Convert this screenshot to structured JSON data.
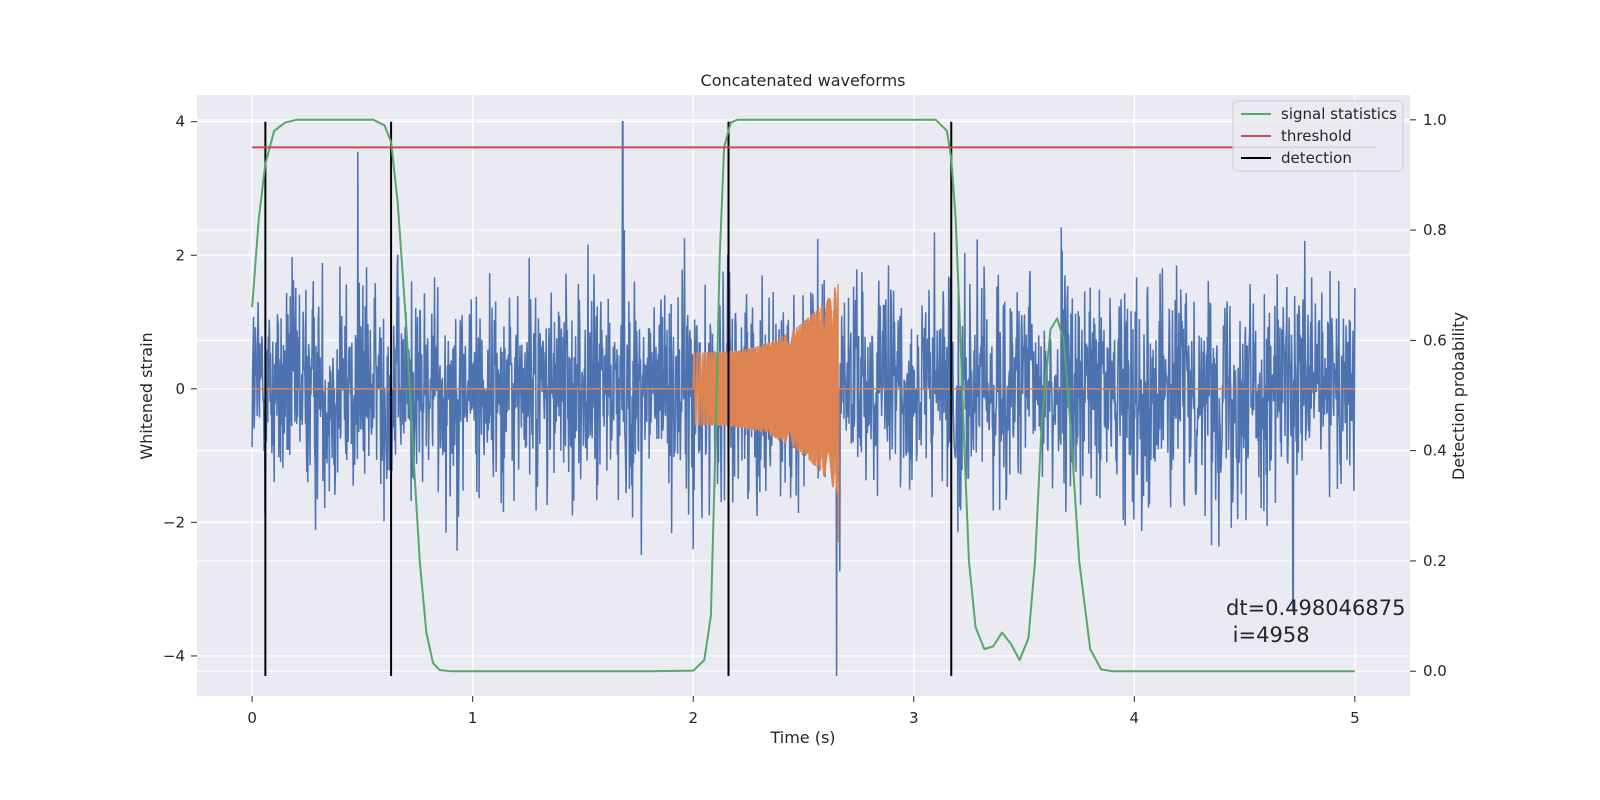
{
  "chart_data": {
    "type": "line",
    "title": "Concatenated waveforms",
    "xlabel": "Time (s)",
    "ylabel": "Whitened strain",
    "y2label": "Detection probability",
    "xlim": [
      -0.25,
      5.25
    ],
    "ylim": [
      -4.6,
      4.4
    ],
    "y2lim": [
      -0.045,
      1.045
    ],
    "xticks": [
      0,
      1,
      2,
      3,
      4,
      5
    ],
    "yticks": [
      -4,
      -2,
      0,
      2,
      4
    ],
    "y2ticks": [
      0.0,
      0.2,
      0.4,
      0.6,
      0.8,
      1.0
    ],
    "grid": true,
    "legend_position": "top-right",
    "colors": {
      "axes_bg": "#EAEAF2",
      "grid": "#FFFFFF",
      "strain": "#4C72B0",
      "template": "#DD8452",
      "signal_statistics": "#55A868",
      "threshold": "#C44E52",
      "detection": "#000000"
    },
    "legend": [
      {
        "label": "signal statistics",
        "color": "#55A868"
      },
      {
        "label": "threshold",
        "color": "#C44E52"
      },
      {
        "label": "detection",
        "color": "#000000"
      }
    ],
    "series": [
      {
        "name": "signal statistics",
        "axis": "right",
        "x": [
          0.0,
          0.03,
          0.06,
          0.1,
          0.15,
          0.2,
          0.3,
          0.45,
          0.55,
          0.6,
          0.63,
          0.66,
          0.7,
          0.73,
          0.76,
          0.79,
          0.82,
          0.85,
          0.9,
          1.2,
          1.5,
          1.8,
          2.0,
          2.05,
          2.08,
          2.1,
          2.12,
          2.14,
          2.17,
          2.2,
          2.3,
          2.5,
          2.8,
          3.1,
          3.15,
          3.17,
          3.19,
          3.21,
          3.23,
          3.25,
          3.28,
          3.32,
          3.36,
          3.4,
          3.44,
          3.48,
          3.52,
          3.55,
          3.58,
          3.62,
          3.65,
          3.68,
          3.71,
          3.75,
          3.8,
          3.85,
          3.9,
          4.0,
          4.5,
          5.0
        ],
        "y": [
          0.66,
          0.82,
          0.92,
          0.98,
          0.995,
          1.0,
          1.0,
          1.0,
          1.0,
          0.99,
          0.96,
          0.85,
          0.62,
          0.4,
          0.2,
          0.07,
          0.015,
          0.002,
          0.0,
          0.0,
          0.0,
          0.0,
          0.001,
          0.02,
          0.1,
          0.4,
          0.75,
          0.95,
          0.995,
          1.0,
          1.0,
          1.0,
          1.0,
          1.0,
          0.98,
          0.93,
          0.82,
          0.62,
          0.4,
          0.2,
          0.08,
          0.04,
          0.045,
          0.07,
          0.05,
          0.02,
          0.06,
          0.2,
          0.45,
          0.62,
          0.64,
          0.6,
          0.45,
          0.2,
          0.04,
          0.003,
          0.0,
          0.0,
          0.0,
          0.0
        ]
      },
      {
        "name": "threshold",
        "axis": "right",
        "x": [
          0.0,
          5.1
        ],
        "y": [
          0.95,
          0.95
        ]
      }
    ],
    "detections": [
      0.06,
      0.63,
      2.16,
      3.17
    ],
    "strain_noise": {
      "x_range": [
        0.0,
        5.0
      ],
      "amplitude": 0.85,
      "peaks": [
        {
          "x": 1.68,
          "y": 4.0
        },
        {
          "x": 0.48,
          "y": 3.55
        },
        {
          "x": 2.65,
          "y": -4.3
        },
        {
          "x": 4.72,
          "y": -3.3
        },
        {
          "x": 2.0,
          "y": -2.4
        }
      ]
    },
    "template_chirp": {
      "x_start": 2.0,
      "x_end": 2.66,
      "amp_start": 0.55,
      "amp_end": 1.6,
      "min_end": -2.3
    },
    "annotation": {
      "line1": "dt=0.498046875",
      "line2": " i=4958",
      "x": 4.52,
      "y": -3.45
    }
  }
}
